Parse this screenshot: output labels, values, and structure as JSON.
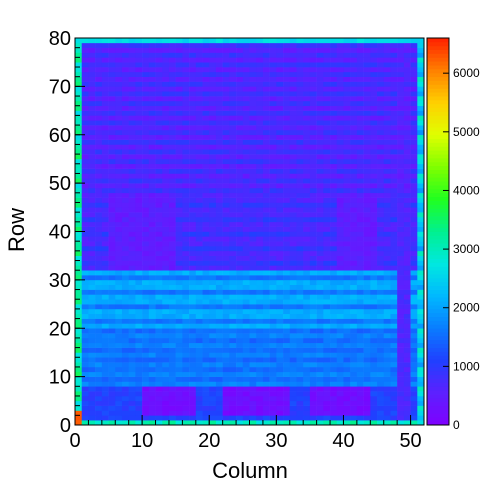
{
  "chart_data": {
    "type": "heatmap",
    "title": "",
    "xlabel": "Column",
    "ylabel": "Row",
    "xlim": [
      0,
      52
    ],
    "ylim": [
      0,
      80
    ],
    "nx": 52,
    "ny": 80,
    "x_ticks": [
      0,
      10,
      20,
      30,
      40,
      50
    ],
    "y_ticks": [
      0,
      10,
      20,
      30,
      40,
      50,
      60,
      70,
      80
    ],
    "z_range": [
      0,
      6600
    ],
    "colorbar_ticks": [
      0,
      1000,
      2000,
      3000,
      4000,
      5000,
      6000
    ],
    "palette": [
      "#7f00ff",
      "#5d20ff",
      "#2040ff",
      "#0a7cff",
      "#00b8ff",
      "#00e8e0",
      "#00f090",
      "#20ff20",
      "#7fff00",
      "#dfff00",
      "#ffd000",
      "#ff8000",
      "#ff2000"
    ],
    "row_bands": [
      {
        "rows": [
          0,
          1
        ],
        "value": 3200,
        "note": "bottom edge rows, high with hot spot at column 0"
      },
      {
        "rows": [
          1,
          8
        ],
        "value": 1100,
        "note": "low rows with purple blocks"
      },
      {
        "rows": [
          8,
          20
        ],
        "value": 1500
      },
      {
        "rows": [
          20,
          32
        ],
        "value": 2100
      },
      {
        "rows": [
          32,
          48
        ],
        "value": 700
      },
      {
        "rows": [
          48,
          80
        ],
        "value": 850
      }
    ],
    "features": {
      "purple_blocks_rows_2_to_8_columns": [
        [
          10,
          18
        ],
        [
          22,
          32
        ],
        [
          35,
          44
        ]
      ],
      "left_edge_column_value": 3500,
      "hot_spot": {
        "column": 0,
        "row": 2,
        "value": 6400
      }
    }
  }
}
